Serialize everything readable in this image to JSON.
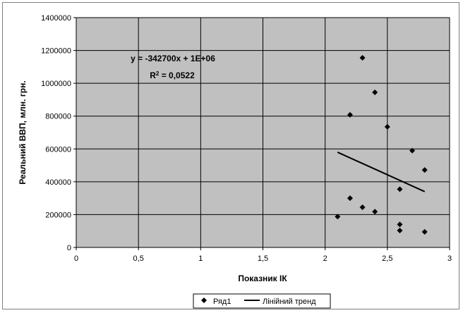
{
  "chart_data": {
    "type": "scatter",
    "title": "",
    "xlabel": "Показник ІК",
    "ylabel": "Реальний ВВП, млн. грн.",
    "xlim": [
      0,
      3
    ],
    "ylim": [
      0,
      1400000
    ],
    "x_ticks": [
      "0",
      "0,5",
      "1",
      "1,5",
      "2",
      "2,5",
      "3"
    ],
    "y_ticks": [
      "0",
      "200000",
      "400000",
      "600000",
      "800000",
      "1000000",
      "1200000",
      "1400000"
    ],
    "grid": true,
    "legend_position": "bottom",
    "series": [
      {
        "name": "Ряд1",
        "marker": "diamond",
        "color": "#000000",
        "x": [
          2.3,
          2.4,
          2.2,
          2.5,
          2.7,
          2.8,
          2.6,
          2.2,
          2.3,
          2.4,
          2.1,
          2.6,
          2.6,
          2.8
        ],
        "y": [
          1155000,
          945000,
          808000,
          735000,
          590000,
          472000,
          355000,
          300000,
          245000,
          218000,
          188000,
          140000,
          103000,
          95000
        ]
      }
    ],
    "trendline": {
      "name": "Лінійний тренд",
      "color": "#000000",
      "x": [
        2.1,
        2.8
      ],
      "y": [
        580000,
        340000
      ]
    },
    "annotations": {
      "equation": "y = -342700x + 1E+06",
      "r2_prefix": "R",
      "r2_sup": "2",
      "r2_value": " = 0,0522"
    },
    "plot_background": "#c0c0c0",
    "grid_color": "#000000"
  }
}
